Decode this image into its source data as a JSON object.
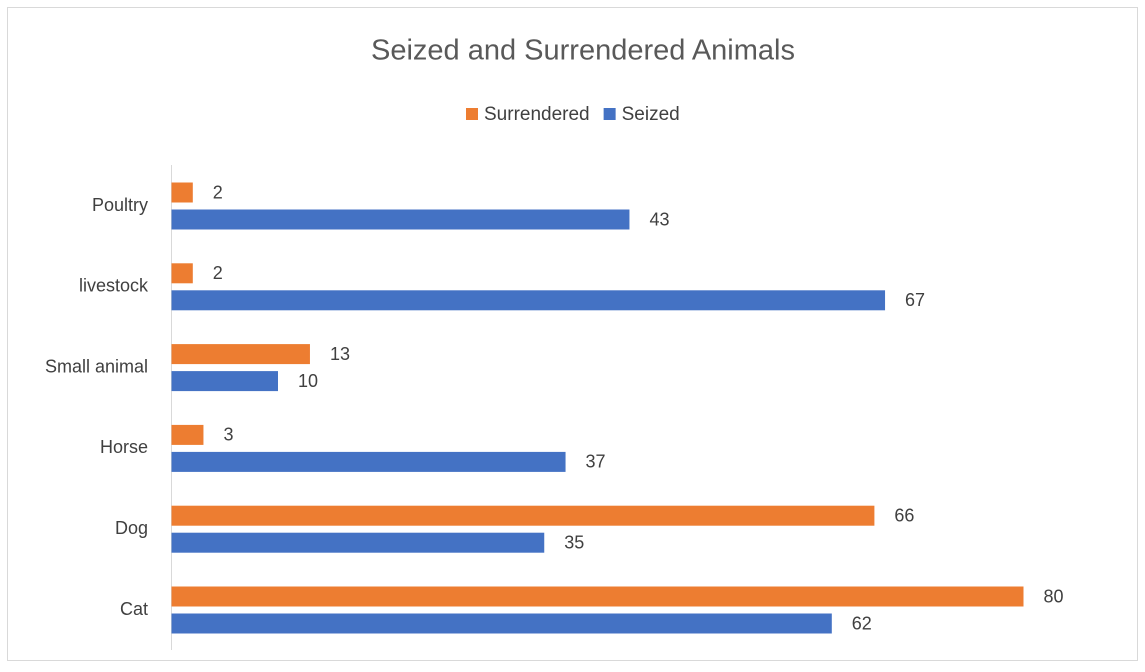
{
  "chart_data": {
    "type": "hbar",
    "title": "Seized and Surrendered Animals",
    "categories": [
      "Cat",
      "Dog",
      "Horse",
      "Small animal",
      "livestock",
      "Poultry"
    ],
    "series": [
      {
        "name": "Surrendered",
        "color": "#ed7d31",
        "values": [
          80,
          66,
          3,
          13,
          2,
          2
        ]
      },
      {
        "name": "Seized",
        "color": "#4472c4",
        "values": [
          62,
          35,
          37,
          10,
          67,
          43
        ]
      }
    ],
    "legend": "top"
  }
}
